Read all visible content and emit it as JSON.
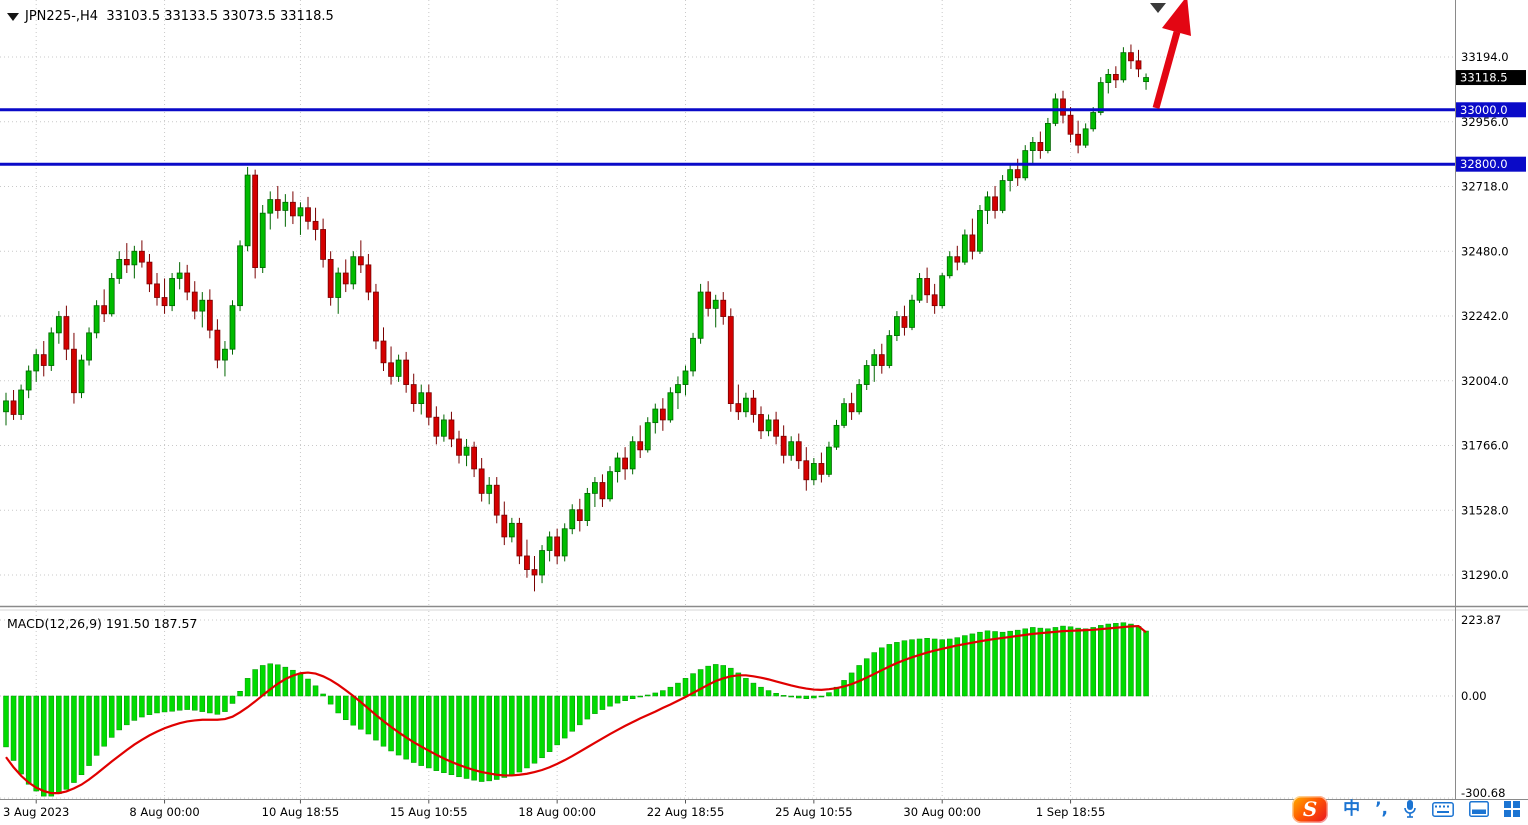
{
  "symbol_bar": {
    "triangle_icon": "triangle-down",
    "text": "JPN225-,H4  33103.5 33133.5 33073.5 33118.5"
  },
  "macd_panel": {
    "label": "MACD(12,26,9) 191.50 187.57"
  },
  "colors": {
    "candle_up": "#00BB00",
    "candle_up_border": "#006600",
    "candle_down": "#D40000",
    "candle_down_border": "#7A0000",
    "histogram": "#00DB00",
    "histogram_border": "#009100",
    "signal_line": "#E00000",
    "level_line": "#0A0AC8",
    "grid": "#c9c9c9",
    "axis_text": "#000000",
    "tag_current_bg": "#000000",
    "arrow": "#E30613"
  },
  "taskbar": {
    "icons": [
      {
        "name": "sogou-input-logo",
        "glyph": "S"
      },
      {
        "name": "ime-chinese-icon",
        "glyph": "中"
      },
      {
        "name": "ime-punctuation-icon",
        "glyph": "’,"
      },
      {
        "name": "microphone-icon"
      },
      {
        "name": "keyboard-icon"
      },
      {
        "name": "touch-keyboard-icon"
      },
      {
        "name": "app-grid-icon"
      }
    ]
  },
  "chart_data": {
    "type": "candlestick",
    "symbol": "JPN225-",
    "timeframe": "H4",
    "ohlc_current": {
      "open": 33103.5,
      "high": 33133.5,
      "low": 33073.5,
      "close": 33118.5
    },
    "current_price": {
      "label": "33118.5",
      "value": 33118.5
    },
    "price_ticks": [
      {
        "label": "33194.0",
        "value": 33194
      },
      {
        "label": "32956.0",
        "value": 32956
      },
      {
        "label": "32718.0",
        "value": 32718
      },
      {
        "label": "32480.0",
        "value": 32480
      },
      {
        "label": "32242.0",
        "value": 32242
      },
      {
        "label": "32004.0",
        "value": 32004
      },
      {
        "label": "31766.0",
        "value": 31766
      },
      {
        "label": "31528.0",
        "value": 31528
      },
      {
        "label": "31290.0",
        "value": 31290
      }
    ],
    "levels": [
      {
        "label": "33000.0",
        "value": 33000
      },
      {
        "label": "32800.0",
        "value": 32800
      }
    ],
    "time_labels": [
      {
        "text": "3 Aug 2023",
        "bar": 4
      },
      {
        "text": "8 Aug 00:00",
        "bar": 21
      },
      {
        "text": "10 Aug 18:55",
        "bar": 39
      },
      {
        "text": "15 Aug 10:55",
        "bar": 56
      },
      {
        "text": "18 Aug 00:00",
        "bar": 73
      },
      {
        "text": "22 Aug 18:55",
        "bar": 90
      },
      {
        "text": "25 Aug 10:55",
        "bar": 107
      },
      {
        "text": "30 Aug 00:00",
        "bar": 124
      },
      {
        "text": "1 Sep 18:55",
        "bar": 141
      }
    ],
    "candles": [
      [
        31890,
        31960,
        31840,
        31930
      ],
      [
        31930,
        31970,
        31860,
        31880
      ],
      [
        31880,
        31990,
        31860,
        31970
      ],
      [
        31970,
        32060,
        31940,
        32040
      ],
      [
        32040,
        32120,
        32000,
        32100
      ],
      [
        32100,
        32150,
        32020,
        32060
      ],
      [
        32060,
        32200,
        32040,
        32180
      ],
      [
        32180,
        32260,
        32140,
        32240
      ],
      [
        32240,
        32280,
        32080,
        32120
      ],
      [
        32120,
        32180,
        31920,
        31960
      ],
      [
        31960,
        32100,
        31940,
        32080
      ],
      [
        32080,
        32200,
        32060,
        32180
      ],
      [
        32180,
        32300,
        32160,
        32280
      ],
      [
        32280,
        32340,
        32220,
        32250
      ],
      [
        32250,
        32400,
        32240,
        32380
      ],
      [
        32380,
        32480,
        32360,
        32450
      ],
      [
        32450,
        32510,
        32400,
        32430
      ],
      [
        32430,
        32500,
        32380,
        32480
      ],
      [
        32480,
        32520,
        32420,
        32440
      ],
      [
        32440,
        32470,
        32330,
        32360
      ],
      [
        32360,
        32400,
        32280,
        32310
      ],
      [
        32310,
        32380,
        32250,
        32280
      ],
      [
        32280,
        32400,
        32260,
        32380
      ],
      [
        32380,
        32440,
        32340,
        32400
      ],
      [
        32400,
        32430,
        32300,
        32330
      ],
      [
        32330,
        32370,
        32230,
        32260
      ],
      [
        32260,
        32330,
        32200,
        32300
      ],
      [
        32300,
        32340,
        32160,
        32190
      ],
      [
        32190,
        32230,
        32050,
        32080
      ],
      [
        32080,
        32150,
        32020,
        32120
      ],
      [
        32120,
        32300,
        32100,
        32280
      ],
      [
        32280,
        32520,
        32260,
        32500
      ],
      [
        32500,
        32790,
        32480,
        32760
      ],
      [
        32760,
        32780,
        32380,
        32420
      ],
      [
        32420,
        32650,
        32400,
        32620
      ],
      [
        32620,
        32700,
        32560,
        32670
      ],
      [
        32670,
        32720,
        32600,
        32630
      ],
      [
        32630,
        32690,
        32570,
        32660
      ],
      [
        32660,
        32700,
        32580,
        32610
      ],
      [
        32610,
        32660,
        32540,
        32640
      ],
      [
        32640,
        32680,
        32560,
        32590
      ],
      [
        32590,
        32640,
        32520,
        32560
      ],
      [
        32560,
        32600,
        32420,
        32450
      ],
      [
        32450,
        32480,
        32280,
        32310
      ],
      [
        32310,
        32420,
        32250,
        32400
      ],
      [
        32400,
        32450,
        32330,
        32360
      ],
      [
        32360,
        32480,
        32340,
        32460
      ],
      [
        32460,
        32520,
        32400,
        32430
      ],
      [
        32430,
        32470,
        32300,
        32330
      ],
      [
        32330,
        32360,
        32120,
        32150
      ],
      [
        32150,
        32200,
        32040,
        32070
      ],
      [
        32070,
        32130,
        31990,
        32020
      ],
      [
        32020,
        32100,
        32000,
        32080
      ],
      [
        32080,
        32110,
        31960,
        31990
      ],
      [
        31990,
        32030,
        31890,
        31920
      ],
      [
        31920,
        31990,
        31880,
        31960
      ],
      [
        31960,
        31990,
        31840,
        31870
      ],
      [
        31870,
        31910,
        31770,
        31800
      ],
      [
        31800,
        31880,
        31780,
        31860
      ],
      [
        31860,
        31890,
        31760,
        31790
      ],
      [
        31790,
        31820,
        31700,
        31730
      ],
      [
        31730,
        31790,
        31690,
        31760
      ],
      [
        31760,
        31780,
        31650,
        31680
      ],
      [
        31680,
        31720,
        31560,
        31590
      ],
      [
        31590,
        31650,
        31550,
        31620
      ],
      [
        31620,
        31650,
        31480,
        31510
      ],
      [
        31510,
        31560,
        31400,
        31430
      ],
      [
        31430,
        31500,
        31410,
        31480
      ],
      [
        31480,
        31500,
        31330,
        31360
      ],
      [
        31360,
        31420,
        31280,
        31310
      ],
      [
        31310,
        31360,
        31230,
        31290
      ],
      [
        31290,
        31400,
        31260,
        31380
      ],
      [
        31380,
        31450,
        31340,
        31430
      ],
      [
        31430,
        31460,
        31330,
        31360
      ],
      [
        31360,
        31480,
        31340,
        31460
      ],
      [
        31460,
        31550,
        31440,
        31530
      ],
      [
        31530,
        31570,
        31450,
        31490
      ],
      [
        31490,
        31610,
        31470,
        31590
      ],
      [
        31590,
        31650,
        31540,
        31630
      ],
      [
        31630,
        31660,
        31540,
        31570
      ],
      [
        31570,
        31690,
        31560,
        31670
      ],
      [
        31670,
        31740,
        31630,
        31720
      ],
      [
        31720,
        31760,
        31640,
        31680
      ],
      [
        31680,
        31800,
        31660,
        31780
      ],
      [
        31780,
        31840,
        31720,
        31750
      ],
      [
        31750,
        31870,
        31740,
        31850
      ],
      [
        31850,
        31920,
        31810,
        31900
      ],
      [
        31900,
        31940,
        31820,
        31860
      ],
      [
        31860,
        31980,
        31850,
        31960
      ],
      [
        31960,
        32020,
        31900,
        31990
      ],
      [
        31990,
        32060,
        31950,
        32040
      ],
      [
        32040,
        32180,
        32020,
        32160
      ],
      [
        32160,
        32360,
        32140,
        32330
      ],
      [
        32330,
        32370,
        32240,
        32270
      ],
      [
        32270,
        32320,
        32200,
        32300
      ],
      [
        32300,
        32330,
        32210,
        32240
      ],
      [
        32240,
        32270,
        31890,
        31920
      ],
      [
        31920,
        31990,
        31860,
        31890
      ],
      [
        31890,
        31960,
        31870,
        31940
      ],
      [
        31940,
        31970,
        31850,
        31880
      ],
      [
        31880,
        31910,
        31790,
        31820
      ],
      [
        31820,
        31880,
        31800,
        31860
      ],
      [
        31860,
        31890,
        31770,
        31800
      ],
      [
        31800,
        31840,
        31700,
        31730
      ],
      [
        31730,
        31800,
        31710,
        31780
      ],
      [
        31780,
        31810,
        31680,
        31710
      ],
      [
        31710,
        31760,
        31600,
        31640
      ],
      [
        31640,
        31720,
        31620,
        31700
      ],
      [
        31700,
        31740,
        31630,
        31660
      ],
      [
        31660,
        31780,
        31650,
        31760
      ],
      [
        31760,
        31860,
        31750,
        31840
      ],
      [
        31840,
        31940,
        31830,
        31920
      ],
      [
        31920,
        31960,
        31860,
        31890
      ],
      [
        31890,
        32010,
        31880,
        31990
      ],
      [
        31990,
        32080,
        31970,
        32060
      ],
      [
        32060,
        32120,
        32000,
        32100
      ],
      [
        32100,
        32140,
        32030,
        32060
      ],
      [
        32060,
        32190,
        32050,
        32170
      ],
      [
        32170,
        32260,
        32150,
        32240
      ],
      [
        32240,
        32280,
        32170,
        32200
      ],
      [
        32200,
        32320,
        32190,
        32300
      ],
      [
        32300,
        32400,
        32290,
        32380
      ],
      [
        32380,
        32420,
        32290,
        32320
      ],
      [
        32320,
        32360,
        32250,
        32280
      ],
      [
        32280,
        32400,
        32270,
        32390
      ],
      [
        32390,
        32480,
        32380,
        32460
      ],
      [
        32460,
        32500,
        32410,
        32440
      ],
      [
        32440,
        32560,
        32430,
        32540
      ],
      [
        32540,
        32600,
        32450,
        32480
      ],
      [
        32480,
        32650,
        32470,
        32630
      ],
      [
        32630,
        32700,
        32580,
        32680
      ],
      [
        32680,
        32720,
        32600,
        32630
      ],
      [
        32630,
        32760,
        32620,
        32740
      ],
      [
        32740,
        32800,
        32700,
        32780
      ],
      [
        32780,
        32820,
        32720,
        32750
      ],
      [
        32750,
        32870,
        32740,
        32850
      ],
      [
        32850,
        32900,
        32800,
        32880
      ],
      [
        32880,
        32920,
        32820,
        32850
      ],
      [
        32850,
        32970,
        32840,
        32950
      ],
      [
        32950,
        33060,
        32940,
        33040
      ],
      [
        33040,
        33070,
        32950,
        32980
      ],
      [
        32980,
        33010,
        32880,
        32910
      ],
      [
        32910,
        32960,
        32840,
        32870
      ],
      [
        32870,
        32950,
        32860,
        32930
      ],
      [
        32930,
        33010,
        32920,
        32990
      ],
      [
        32990,
        33120,
        32980,
        33100
      ],
      [
        33100,
        33150,
        33060,
        33130
      ],
      [
        33130,
        33160,
        33080,
        33110
      ],
      [
        33110,
        33230,
        33100,
        33210
      ],
      [
        33210,
        33240,
        33150,
        33180
      ],
      [
        33180,
        33220,
        33120,
        33150
      ],
      [
        33103.5,
        33133.5,
        33073.5,
        33118.5
      ]
    ],
    "indicator": {
      "type": "macd-histogram",
      "name": "MACD(12,26,9)",
      "main_value": "191.50",
      "signal_value": "187.57",
      "ticks": [
        {
          "label": "223.87",
          "value": 223.87
        },
        {
          "label": "0.00",
          "value": 0
        },
        {
          "label": "-300.68",
          "value": -300.68
        }
      ],
      "histogram": [
        -150,
        -190,
        -230,
        -260,
        -280,
        -295,
        -295,
        -288,
        -275,
        -255,
        -232,
        -205,
        -175,
        -148,
        -122,
        -100,
        -85,
        -72,
        -62,
        -55,
        -50,
        -47,
        -45,
        -42,
        -40,
        -42,
        -46,
        -50,
        -54,
        -46,
        -22,
        14,
        52,
        78,
        90,
        95,
        92,
        85,
        76,
        65,
        50,
        30,
        6,
        -24,
        -50,
        -70,
        -86,
        -98,
        -112,
        -130,
        -148,
        -162,
        -174,
        -186,
        -196,
        -205,
        -212,
        -220,
        -226,
        -232,
        -238,
        -243,
        -248,
        -252,
        -250,
        -246,
        -240,
        -233,
        -224,
        -212,
        -198,
        -182,
        -164,
        -144,
        -124,
        -104,
        -85,
        -68,
        -52,
        -40,
        -30,
        -21,
        -14,
        -8,
        -3,
        3,
        9,
        16,
        26,
        38,
        52,
        66,
        78,
        88,
        93,
        90,
        82,
        68,
        52,
        38,
        26,
        16,
        8,
        2,
        -3,
        -6,
        -8,
        -6,
        -1,
        10,
        26,
        46,
        68,
        90,
        110,
        128,
        142,
        152,
        158,
        163,
        166,
        168,
        170,
        168,
        166,
        168,
        172,
        178,
        183,
        188,
        192,
        190,
        188,
        191,
        194,
        198,
        202,
        200,
        198,
        202,
        206,
        204,
        200,
        198,
        202,
        208,
        212,
        214,
        216,
        212,
        205,
        191.5
      ],
      "signal": [
        -180,
        -210,
        -235,
        -255,
        -270,
        -280,
        -286,
        -286,
        -281,
        -272,
        -261,
        -246,
        -229,
        -211,
        -193,
        -176,
        -159,
        -143,
        -129,
        -116,
        -105,
        -95,
        -87,
        -80,
        -75,
        -72,
        -70,
        -70,
        -70,
        -68,
        -61,
        -48,
        -33,
        -16,
        2,
        20,
        36,
        50,
        60,
        67,
        69,
        66,
        58,
        47,
        33,
        17,
        0,
        -18,
        -37,
        -56,
        -74,
        -91,
        -107,
        -122,
        -136,
        -149,
        -161,
        -173,
        -184,
        -194,
        -203,
        -211,
        -218,
        -224,
        -228,
        -232,
        -234,
        -234,
        -232,
        -229,
        -224,
        -218,
        -210,
        -200,
        -189,
        -177,
        -164,
        -151,
        -138,
        -125,
        -112,
        -100,
        -88,
        -77,
        -66,
        -56,
        -46,
        -35,
        -25,
        -14,
        -3,
        9,
        21,
        33,
        44,
        52,
        58,
        61,
        61,
        58,
        54,
        49,
        43,
        37,
        31,
        26,
        22,
        19,
        18,
        20,
        23,
        28,
        35,
        44,
        54,
        65,
        76,
        87,
        97,
        106,
        114,
        121,
        128,
        134,
        139,
        144,
        149,
        153,
        157,
        161,
        165,
        168,
        171,
        174,
        177,
        180,
        183,
        185,
        187,
        189,
        191,
        192,
        193,
        194,
        195,
        197,
        199,
        201,
        203,
        205,
        206,
        187.57
      ]
    }
  }
}
